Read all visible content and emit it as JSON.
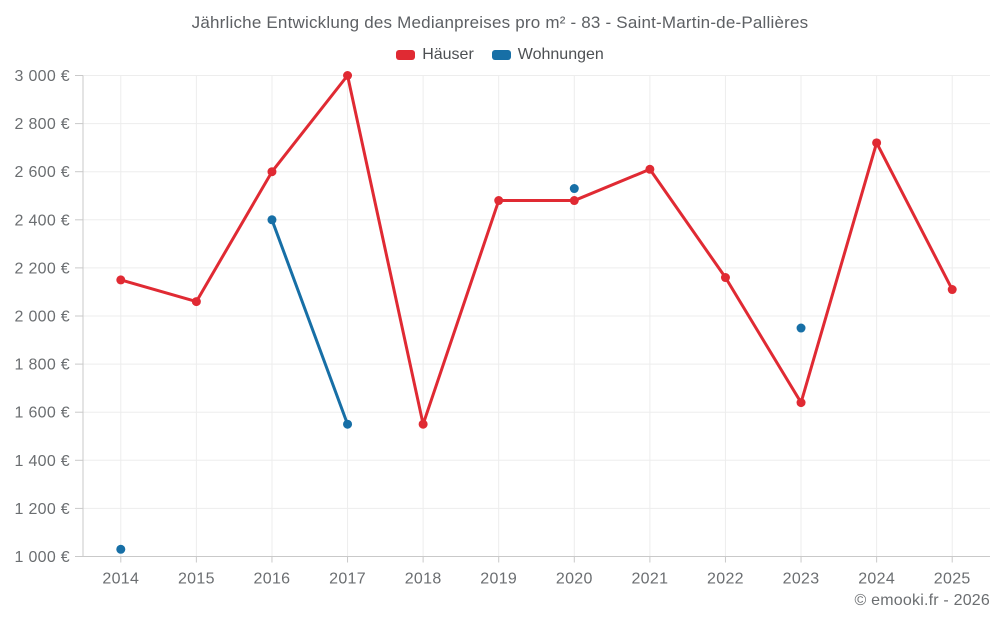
{
  "header": {
    "title": "Jährliche Entwicklung des Medianpreises pro m² - 83 - Saint-Martin-de-Pallières"
  },
  "legend": {
    "items": [
      {
        "label": "Häuser",
        "color": "#e02a33"
      },
      {
        "label": "Wohnungen",
        "color": "#176fa6"
      }
    ]
  },
  "footer": {
    "credit": "© emooki.fr - 2026"
  },
  "chart_data": {
    "type": "line",
    "title": "Jährliche Entwicklung des Medianpreises pro m² - 83 - Saint-Martin-de-Pallières",
    "x": [
      "2014",
      "2015",
      "2016",
      "2017",
      "2018",
      "2019",
      "2020",
      "2021",
      "2022",
      "2023",
      "2024",
      "2025"
    ],
    "series": [
      {
        "name": "Häuser",
        "color": "#e02a33",
        "values": [
          2150,
          2060,
          2600,
          3000,
          1550,
          2480,
          2480,
          2610,
          2160,
          1640,
          2720,
          2110
        ]
      },
      {
        "name": "Wohnungen",
        "color": "#176fa6",
        "values": [
          1030,
          null,
          2400,
          1550,
          null,
          null,
          2530,
          null,
          null,
          1950,
          null,
          null
        ]
      }
    ],
    "ylim": [
      1000,
      3000
    ],
    "ytick_step": 200,
    "ytick_suffix": " €",
    "xlabel": "",
    "ylabel": "",
    "grid": true,
    "legend_position": "top",
    "marker": "circle"
  }
}
